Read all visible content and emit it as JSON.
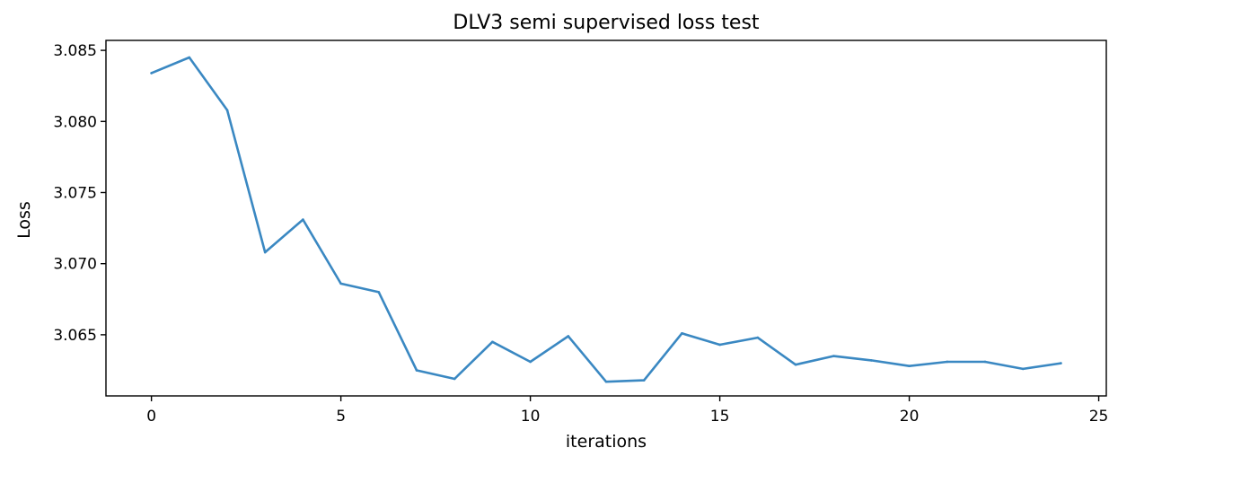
{
  "chart_data": {
    "type": "line",
    "title": "DLV3 semi supervised loss test",
    "xlabel": "iterations",
    "ylabel": "Loss",
    "xlim": [
      -1.2,
      25.2
    ],
    "ylim": [
      3.0607,
      3.0857
    ],
    "xticks": [
      0,
      5,
      10,
      15,
      20,
      25
    ],
    "yticks": [
      3.065,
      3.07,
      3.075,
      3.08,
      3.085
    ],
    "ytick_labels": [
      "3.065",
      "3.070",
      "3.075",
      "3.080",
      "3.085"
    ],
    "grid": false,
    "legend": false,
    "x": [
      0,
      1,
      2,
      3,
      4,
      5,
      6,
      7,
      8,
      9,
      10,
      11,
      12,
      13,
      14,
      15,
      16,
      17,
      18,
      19,
      20,
      21,
      22,
      23,
      24
    ],
    "series": [
      {
        "color": "#3a88c2",
        "values": [
          3.0834,
          3.0845,
          3.0808,
          3.0708,
          3.0731,
          3.0686,
          3.068,
          3.0625,
          3.0619,
          3.0645,
          3.0631,
          3.0649,
          3.0617,
          3.0618,
          3.0651,
          3.0643,
          3.0648,
          3.0629,
          3.0635,
          3.0632,
          3.0628,
          3.0631,
          3.0631,
          3.0626,
          3.063
        ]
      }
    ]
  }
}
